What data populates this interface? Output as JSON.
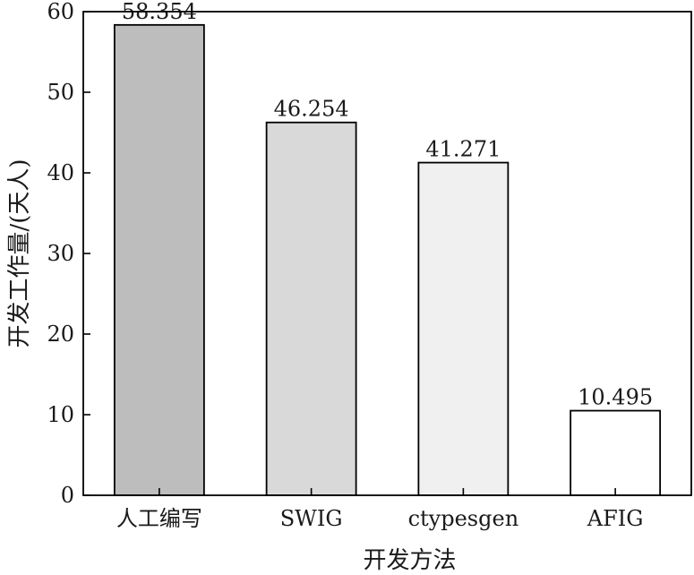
{
  "chart_data": {
    "type": "bar",
    "title": "",
    "xlabel": "开发方法",
    "ylabel": "开发工作量/(天人)",
    "ylim": [
      0,
      60
    ],
    "yticks": [
      0,
      10,
      20,
      30,
      40,
      50,
      60
    ],
    "grid": false,
    "legend": "none",
    "categories": [
      "人工编写",
      "SWIG",
      "ctypesgen",
      "AFIG"
    ],
    "values": [
      58.354,
      46.254,
      41.271,
      10.495
    ],
    "value_labels": [
      "58.354",
      "46.254",
      "41.271",
      "10.495"
    ],
    "bar_colors": [
      "#bdbdbd",
      "#d9d9d9",
      "#f0f0f0",
      "#ffffff"
    ],
    "bar_edge_color": "#000000"
  }
}
